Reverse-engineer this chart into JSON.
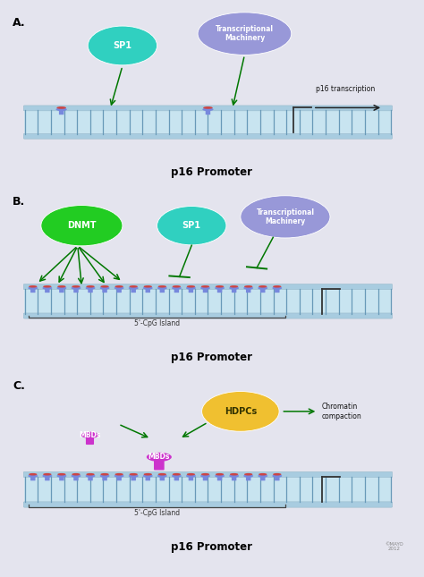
{
  "bg_color": "#e4e4ee",
  "dna_rail_color": "#a8cce0",
  "dna_inner_color": "#c8e4f0",
  "dna_rung_color": "#6899b8",
  "panel_labels": [
    "A.",
    "B.",
    "C."
  ],
  "promoter_label": "p16 Promoter",
  "cpg_label": "5'-CpG Island",
  "transcription_label": "p16 transcription",
  "chromatin_label": "Chromatin\ncompaction",
  "sp1_color": "#30d0c0",
  "sp1_label": "SP1",
  "tm_color": "#9898d8",
  "tm_label": "Transcriptional\nMachinery",
  "dnmt_color": "#22cc22",
  "dnmt_label": "DNMT",
  "mbd_color": "#cc33cc",
  "mbd_label": "MBDs",
  "hdpc_color": "#f0c030",
  "hdpc_label": "HDPCs",
  "arrow_color": "#007700",
  "methyl_body_color": "#7788dd",
  "methyl_cap_color": "#cc4444"
}
